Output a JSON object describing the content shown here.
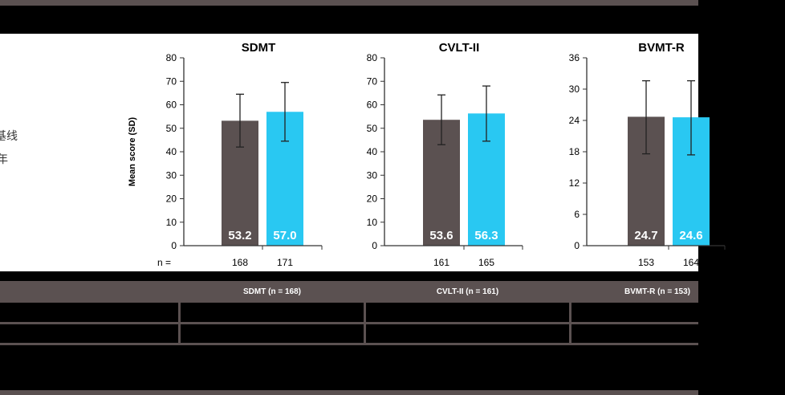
{
  "legend": {
    "item_1_fragment": "基线",
    "item_2_fragment": "年"
  },
  "colors": {
    "baseline": "#5b5151",
    "followup": "#29c8f2",
    "frame": "#5b5151"
  },
  "chart_data": [
    {
      "type": "bar",
      "title": "SDMT",
      "ylabel": "Mean score (SD)",
      "n_prefix": "n =",
      "ylim": [
        0,
        80
      ],
      "yticks": [
        0,
        10,
        20,
        30,
        40,
        50,
        60,
        70,
        80
      ],
      "series": [
        {
          "value": 53.2,
          "label": "53.2",
          "error_low": 42.0,
          "error_high": 64.5,
          "n": "168"
        },
        {
          "value": 57.0,
          "label": "57.0",
          "error_low": 44.5,
          "error_high": 69.5,
          "n": "171"
        }
      ]
    },
    {
      "type": "bar",
      "title": "CVLT-II",
      "ylabel": "",
      "n_prefix": "",
      "ylim": [
        0,
        80
      ],
      "yticks": [
        0,
        10,
        20,
        30,
        40,
        50,
        60,
        70,
        80
      ],
      "series": [
        {
          "value": 53.6,
          "label": "53.6",
          "error_low": 43.0,
          "error_high": 64.2,
          "n": "161"
        },
        {
          "value": 56.3,
          "label": "56.3",
          "error_low": 44.5,
          "error_high": 68.0,
          "n": "165"
        }
      ]
    },
    {
      "type": "bar",
      "title": "BVMT-R",
      "ylabel": "",
      "n_prefix": "",
      "ylim": [
        0,
        36
      ],
      "yticks": [
        0,
        6,
        12,
        18,
        24,
        30,
        36
      ],
      "series": [
        {
          "value": 24.7,
          "label": "24.7",
          "error_low": 17.6,
          "error_high": 31.6,
          "n": "153"
        },
        {
          "value": 24.6,
          "label": "24.6",
          "error_low": 17.4,
          "error_high": 31.6,
          "n": "164"
        }
      ]
    }
  ],
  "table": {
    "headers": [
      "",
      "SDMT (n = 168)",
      "CVLT-II (n = 161)",
      "BVMT-R (n = 153)"
    ]
  }
}
